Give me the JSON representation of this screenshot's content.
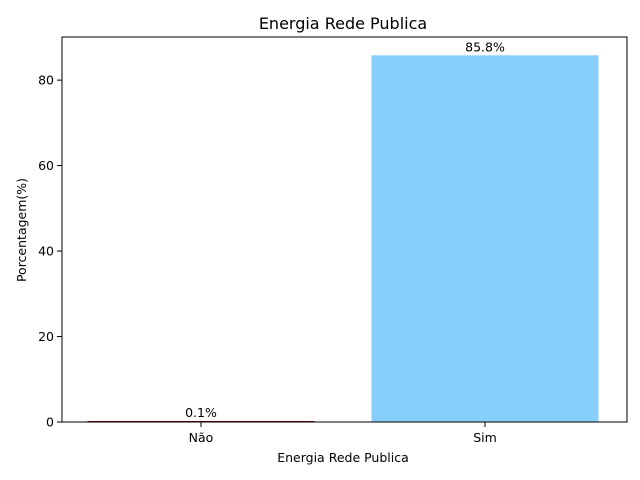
{
  "chart_data": {
    "type": "bar",
    "title": "Energia Rede Publica",
    "xlabel": "Energia Rede Publica",
    "ylabel": "Porcentagem(%)",
    "categories": [
      "Não",
      "Sim"
    ],
    "values": [
      0.1,
      85.8
    ],
    "value_labels": [
      "0.1%",
      "85.8%"
    ],
    "colors": [
      "#8b0000",
      "#87cefa"
    ],
    "ylim": [
      0,
      90.09
    ],
    "yticks": [
      0,
      20,
      40,
      60,
      80
    ],
    "grid": false,
    "legend": null
  }
}
